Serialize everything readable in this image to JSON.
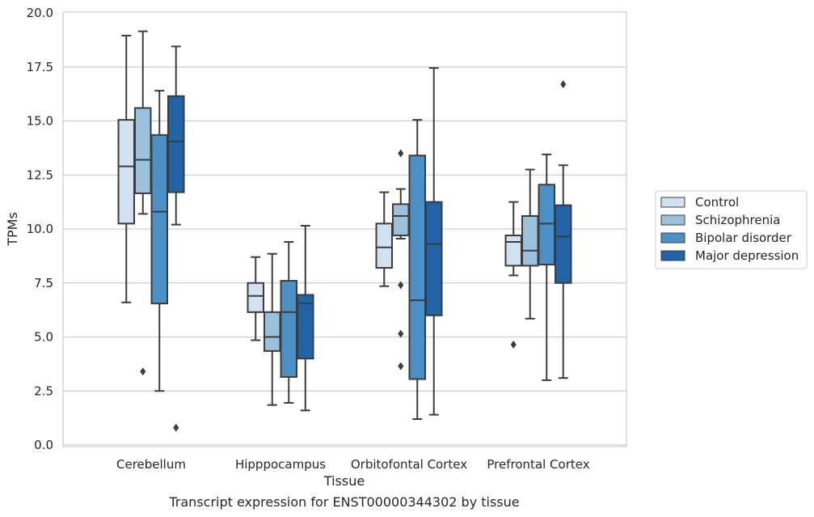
{
  "chart_data": {
    "type": "box",
    "xlabel": "Tissue",
    "ylabel": "TPMs",
    "caption": "Transcript expression for ENST00000344302 by tissue",
    "ylim": [
      0,
      20
    ],
    "yticks": [
      "0.0",
      "2.5",
      "5.0",
      "7.5",
      "10.0",
      "12.5",
      "15.0",
      "17.5",
      "20.0"
    ],
    "ytick_values": [
      0,
      2.5,
      5,
      7.5,
      10,
      12.5,
      15,
      17.5,
      20
    ],
    "grid": true,
    "legend_position": "right",
    "categories": [
      "Cerebellum",
      "Hipppocampus",
      "Orbitofontal Cortex",
      "Prefrontal Cortex"
    ],
    "series": [
      {
        "name": "Control",
        "color": "#d2e1f2",
        "boxes": [
          {
            "whislo": 6.6,
            "q1": 10.25,
            "med": 12.9,
            "q3": 15.05,
            "whishi": 18.95,
            "fliers": []
          },
          {
            "whislo": 4.85,
            "q1": 6.15,
            "med": 6.9,
            "q3": 7.5,
            "whishi": 8.7,
            "fliers": []
          },
          {
            "whislo": 7.35,
            "q1": 8.2,
            "med": 9.15,
            "q3": 10.25,
            "whishi": 11.7,
            "fliers": []
          },
          {
            "whislo": 7.85,
            "q1": 8.3,
            "med": 9.4,
            "q3": 9.7,
            "whishi": 11.25,
            "fliers": [
              4.65
            ]
          }
        ]
      },
      {
        "name": "Schizophrenia",
        "color": "#9ac1dc",
        "boxes": [
          {
            "whislo": 10.7,
            "q1": 11.65,
            "med": 13.2,
            "q3": 15.6,
            "whishi": 19.15,
            "fliers": [
              3.4
            ]
          },
          {
            "whislo": 1.85,
            "q1": 4.35,
            "med": 5.0,
            "q3": 6.15,
            "whishi": 8.85,
            "fliers": []
          },
          {
            "whislo": 9.55,
            "q1": 9.7,
            "med": 10.6,
            "q3": 11.15,
            "whishi": 11.85,
            "fliers": [
              13.5,
              7.4,
              5.15,
              3.65
            ]
          },
          {
            "whislo": 5.85,
            "q1": 8.3,
            "med": 9.0,
            "q3": 10.6,
            "whishi": 12.75,
            "fliers": []
          }
        ]
      },
      {
        "name": "Bipolar disorder",
        "color": "#4d90c5",
        "boxes": [
          {
            "whislo": 2.5,
            "q1": 6.55,
            "med": 10.8,
            "q3": 14.35,
            "whishi": 16.4,
            "fliers": []
          },
          {
            "whislo": 1.95,
            "q1": 3.15,
            "med": 6.15,
            "q3": 7.6,
            "whishi": 9.4,
            "fliers": []
          },
          {
            "whislo": 1.2,
            "q1": 3.05,
            "med": 6.7,
            "q3": 13.4,
            "whishi": 15.05,
            "fliers": []
          },
          {
            "whislo": 3.0,
            "q1": 8.35,
            "med": 10.25,
            "q3": 12.05,
            "whishi": 13.45,
            "fliers": []
          }
        ]
      },
      {
        "name": "Major depression",
        "color": "#2163a6",
        "boxes": [
          {
            "whislo": 10.2,
            "q1": 11.7,
            "med": 14.05,
            "q3": 16.15,
            "whishi": 18.45,
            "fliers": [
              0.8
            ]
          },
          {
            "whislo": 1.6,
            "q1": 4.0,
            "med": 6.55,
            "q3": 6.95,
            "whishi": 10.15,
            "fliers": []
          },
          {
            "whislo": 1.4,
            "q1": 6.0,
            "med": 9.3,
            "q3": 11.25,
            "whishi": 17.45,
            "fliers": []
          },
          {
            "whislo": 3.1,
            "q1": 7.5,
            "med": 9.65,
            "q3": 11.1,
            "whishi": 12.95,
            "fliers": [
              16.7
            ]
          }
        ]
      }
    ]
  }
}
